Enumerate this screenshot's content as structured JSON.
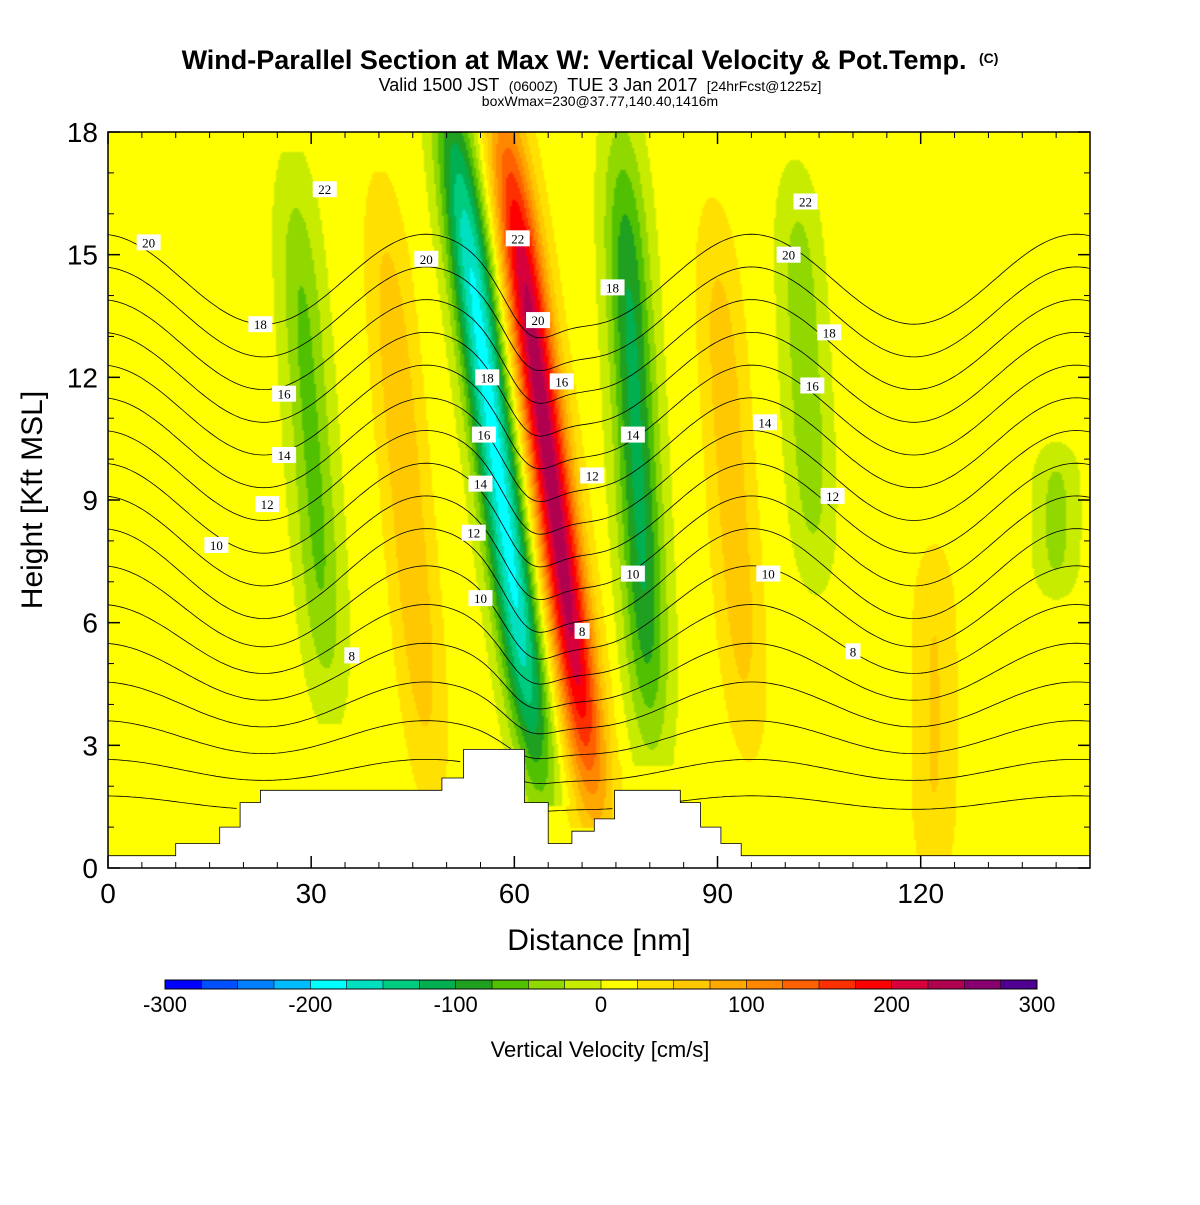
{
  "title": {
    "main": "Wind-Parallel Section at Max W: Vertical Velocity & Pot.Temp.",
    "copyright": "(C)",
    "valid_prefix": "Valid 1500 JST",
    "valid_utc": "(0600Z)",
    "valid_date": "TUE 3 Jan 2017",
    "forecast": "[24hrFcst@1225z]",
    "box_info": "boxWmax=230@37.77,140.40,1416m"
  },
  "chart_data": {
    "type": "heatmap",
    "xlabel": "Distance [nm]",
    "ylabel": "Height [Kft MSL]",
    "xlim": [
      0,
      145
    ],
    "ylim": [
      0,
      18
    ],
    "x_ticks": [
      0,
      30,
      60,
      90,
      120
    ],
    "y_ticks": [
      0,
      3,
      6,
      9,
      12,
      15,
      18
    ],
    "grid": false,
    "field": "Vertical Velocity",
    "colorbar": {
      "title": "Vertical Velocity [cm/s]",
      "min": -300,
      "max": 300,
      "step": 25,
      "tick_values": [
        -300,
        -200,
        -100,
        0,
        100,
        200,
        300
      ],
      "tick_labels": [
        "-300",
        "-200",
        "-100",
        "0",
        "100",
        "200",
        "300"
      ],
      "colors": [
        "#0000ff",
        "#0050ff",
        "#0080ff",
        "#00bbff",
        "#00ffff",
        "#00e0c0",
        "#00cc80",
        "#00b050",
        "#20a020",
        "#50c000",
        "#90d800",
        "#c8ec00",
        "#ffff00",
        "#ffe000",
        "#ffc800",
        "#ffa800",
        "#ff8800",
        "#ff6000",
        "#ff3000",
        "#ff0000",
        "#d8003c",
        "#b00050",
        "#880070",
        "#500090"
      ]
    },
    "updrafts": [
      {
        "x": 65,
        "z_bottom": 2.5,
        "z_top": 17.5,
        "w_max": 230,
        "tilt": 0.8
      },
      {
        "x": 44,
        "z_bottom": 3.0,
        "z_top": 15.5,
        "w_max": 60,
        "tilt": 0.5
      },
      {
        "x": 92,
        "z_bottom": 4.0,
        "z_top": 15.0,
        "w_max": 55,
        "tilt": 0.4
      },
      {
        "x": 122,
        "z_bottom": 0.5,
        "z_top": 7.0,
        "w_max": 40,
        "tilt": 0.0
      }
    ],
    "downdrafts": [
      {
        "x": 57,
        "z_bottom": 3.0,
        "z_top": 18.0,
        "w_min": -200,
        "tilt": 0.8
      },
      {
        "x": 78,
        "z_bottom": 4.0,
        "z_top": 17.0,
        "w_min": -120,
        "tilt": 0.3
      },
      {
        "x": 30,
        "z_bottom": 5.0,
        "z_top": 16.0,
        "w_min": -70,
        "tilt": 0.4
      },
      {
        "x": 103,
        "z_bottom": 8.0,
        "z_top": 16.0,
        "w_min": -55,
        "tilt": 0.3
      },
      {
        "x": 140,
        "z_bottom": 7.5,
        "z_top": 9.5,
        "w_min": -45,
        "tilt": 0.0
      }
    ],
    "terrain": {
      "x": [
        0,
        10,
        10,
        16.5,
        16.5,
        19.5,
        19.5,
        22.5,
        22.5,
        49.3,
        49.3,
        52.5,
        52.5,
        61.5,
        61.5,
        65,
        65,
        68.5,
        68.5,
        71.8,
        71.8,
        74.8,
        74.8,
        84.5,
        84.5,
        87.5,
        87.5,
        90.5,
        90.5,
        93.5,
        93.5,
        145
      ],
      "height_kft": [
        0.3,
        0.3,
        0.6,
        0.6,
        1.0,
        1.0,
        1.6,
        1.6,
        1.9,
        1.9,
        2.2,
        2.2,
        2.9,
        2.9,
        1.6,
        1.6,
        0.6,
        0.6,
        0.9,
        0.9,
        1.2,
        1.2,
        1.9,
        1.9,
        1.6,
        1.6,
        1.0,
        1.0,
        0.6,
        0.6,
        0.3,
        0.3
      ]
    },
    "pot_temp_contours": {
      "field": "Pot.Temp.",
      "levels": [
        7,
        8,
        9,
        10,
        11,
        12,
        13,
        14,
        15,
        16,
        17,
        18,
        19,
        20,
        21,
        22,
        23
      ],
      "labeled_levels": [
        "8",
        "10",
        "12",
        "14",
        "16",
        "18",
        "20",
        "22"
      ],
      "labels": [
        {
          "level": "22",
          "x": 32,
          "z": 16.6
        },
        {
          "level": "20",
          "x": 6,
          "z": 15.3
        },
        {
          "level": "20",
          "x": 47,
          "z": 14.9
        },
        {
          "level": "22",
          "x": 60.5,
          "z": 15.4
        },
        {
          "level": "20",
          "x": 63.5,
          "z": 13.4
        },
        {
          "level": "18",
          "x": 74.5,
          "z": 14.2
        },
        {
          "level": "22",
          "x": 103,
          "z": 16.3
        },
        {
          "level": "20",
          "x": 100.5,
          "z": 15.0
        },
        {
          "level": "18",
          "x": 22.5,
          "z": 13.3
        },
        {
          "level": "18",
          "x": 56,
          "z": 12.0
        },
        {
          "level": "16",
          "x": 67,
          "z": 11.9
        },
        {
          "level": "18",
          "x": 106.5,
          "z": 13.1
        },
        {
          "level": "16",
          "x": 26,
          "z": 11.6
        },
        {
          "level": "16",
          "x": 55.5,
          "z": 10.6
        },
        {
          "level": "14",
          "x": 77.5,
          "z": 10.6
        },
        {
          "level": "16",
          "x": 104,
          "z": 11.8
        },
        {
          "level": "14",
          "x": 26,
          "z": 10.1
        },
        {
          "level": "14",
          "x": 97,
          "z": 10.9
        },
        {
          "level": "14",
          "x": 55,
          "z": 9.4
        },
        {
          "level": "12",
          "x": 71.5,
          "z": 9.6
        },
        {
          "level": "12",
          "x": 23.5,
          "z": 8.9
        },
        {
          "level": "12",
          "x": 107,
          "z": 9.1
        },
        {
          "level": "12",
          "x": 54,
          "z": 8.2
        },
        {
          "level": "10",
          "x": 16,
          "z": 7.9
        },
        {
          "level": "10",
          "x": 77.5,
          "z": 7.2
        },
        {
          "level": "10",
          "x": 97.5,
          "z": 7.2
        },
        {
          "level": "10",
          "x": 55,
          "z": 6.6
        },
        {
          "level": "8",
          "x": 70,
          "z": 5.8
        },
        {
          "level": "8",
          "x": 36,
          "z": 5.2
        },
        {
          "level": "8",
          "x": 110,
          "z": 5.3
        }
      ]
    }
  }
}
